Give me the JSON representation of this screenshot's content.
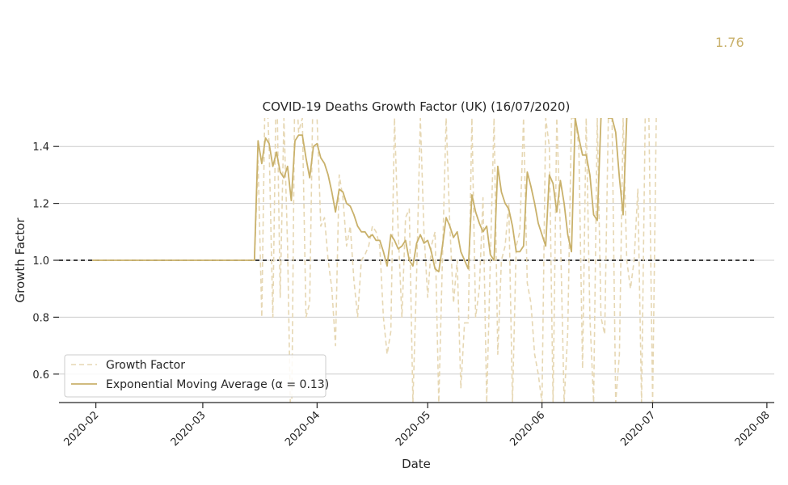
{
  "annotation": "1.76",
  "chart_data": {
    "type": "line",
    "title": "COVID-19 Deaths Growth Factor (UK) (16/07/2020)",
    "xlabel": "Date",
    "ylabel": "Growth Factor",
    "xlim": [
      "2020-01-22",
      "2020-08-03"
    ],
    "ylim": [
      0.5,
      1.5
    ],
    "x_ticks": [
      "2020-02",
      "2020-03",
      "2020-04",
      "2020-05",
      "2020-06",
      "2020-07",
      "2020-08"
    ],
    "y_ticks": [
      0.6,
      0.8,
      1.0,
      1.2,
      1.4
    ],
    "grid": "horizontal",
    "legend_position": "lower-left",
    "colors": {
      "series": "#c9b16b",
      "raw": "#e6d7b3",
      "reference": "#000000",
      "grid": "#cccccc"
    },
    "reference_line": {
      "y": 1.0,
      "x": [
        "2020-01-22",
        "2020-07-29"
      ],
      "style": "dashed"
    },
    "series": [
      {
        "name": "Growth Factor",
        "style": "dashed",
        "points": [
          [
            "2020-01-31",
            1.0
          ],
          [
            "2020-02-15",
            1.0
          ],
          [
            "2020-03-01",
            1.0
          ],
          [
            "2020-03-15",
            1.0
          ],
          [
            "2020-03-16",
            1.35
          ],
          [
            "2020-03-17",
            0.8
          ],
          [
            "2020-03-18",
            1.7
          ],
          [
            "2020-03-19",
            1.4
          ],
          [
            "2020-03-20",
            0.8
          ],
          [
            "2020-03-21",
            1.7
          ],
          [
            "2020-03-22",
            0.87
          ],
          [
            "2020-03-23",
            1.5
          ],
          [
            "2020-03-24",
            1.05
          ],
          [
            "2020-03-25",
            0.3
          ],
          [
            "2020-03-26",
            1.7
          ],
          [
            "2020-03-27",
            1.45
          ],
          [
            "2020-03-28",
            1.5
          ],
          [
            "2020-03-29",
            0.8
          ],
          [
            "2020-03-30",
            0.85
          ],
          [
            "2020-03-31",
            1.7
          ],
          [
            "2020-04-01",
            1.5
          ],
          [
            "2020-04-02",
            1.12
          ],
          [
            "2020-04-03",
            1.15
          ],
          [
            "2020-04-04",
            1.0
          ],
          [
            "2020-04-05",
            0.9
          ],
          [
            "2020-04-06",
            0.7
          ],
          [
            "2020-04-07",
            1.3
          ],
          [
            "2020-04-08",
            1.22
          ],
          [
            "2020-04-09",
            1.05
          ],
          [
            "2020-04-10",
            1.12
          ],
          [
            "2020-04-11",
            0.93
          ],
          [
            "2020-04-12",
            0.8
          ],
          [
            "2020-04-13",
            1.0
          ],
          [
            "2020-04-14",
            1.02
          ],
          [
            "2020-04-15",
            1.05
          ],
          [
            "2020-04-16",
            1.12
          ],
          [
            "2020-04-17",
            1.1
          ],
          [
            "2020-04-18",
            1.05
          ],
          [
            "2020-04-19",
            0.8
          ],
          [
            "2020-04-20",
            0.67
          ],
          [
            "2020-04-21",
            0.75
          ],
          [
            "2020-04-22",
            1.5
          ],
          [
            "2020-04-23",
            1.1
          ],
          [
            "2020-04-24",
            0.8
          ],
          [
            "2020-04-25",
            1.15
          ],
          [
            "2020-04-26",
            1.18
          ],
          [
            "2020-04-27",
            0.5
          ],
          [
            "2020-04-28",
            0.95
          ],
          [
            "2020-04-29",
            1.5
          ],
          [
            "2020-04-30",
            1.1
          ],
          [
            "2020-05-01",
            0.87
          ],
          [
            "2020-05-02",
            1.05
          ],
          [
            "2020-05-03",
            1.1
          ],
          [
            "2020-05-04",
            0.5
          ],
          [
            "2020-05-05",
            1.0
          ],
          [
            "2020-05-06",
            1.5
          ],
          [
            "2020-05-07",
            1.12
          ],
          [
            "2020-05-08",
            0.85
          ],
          [
            "2020-05-09",
            1.0
          ],
          [
            "2020-05-10",
            0.55
          ],
          [
            "2020-05-11",
            0.78
          ],
          [
            "2020-05-12",
            0.78
          ],
          [
            "2020-05-13",
            1.5
          ],
          [
            "2020-05-14",
            0.8
          ],
          [
            "2020-05-15",
            0.9
          ],
          [
            "2020-05-16",
            1.22
          ],
          [
            "2020-05-17",
            0.5
          ],
          [
            "2020-05-18",
            1.0
          ],
          [
            "2020-05-19",
            1.5
          ],
          [
            "2020-05-20",
            0.67
          ],
          [
            "2020-05-21",
            1.0
          ],
          [
            "2020-05-22",
            1.05
          ],
          [
            "2020-05-23",
            1.2
          ],
          [
            "2020-05-24",
            0.5
          ],
          [
            "2020-05-25",
            1.05
          ],
          [
            "2020-05-26",
            1.1
          ],
          [
            "2020-05-27",
            1.5
          ],
          [
            "2020-05-28",
            0.92
          ],
          [
            "2020-05-29",
            0.85
          ],
          [
            "2020-05-30",
            0.67
          ],
          [
            "2020-05-31",
            0.6
          ],
          [
            "2020-06-01",
            0.5
          ],
          [
            "2020-06-02",
            1.5
          ],
          [
            "2020-06-03",
            1.4
          ],
          [
            "2020-06-04",
            0.5
          ],
          [
            "2020-06-05",
            1.5
          ],
          [
            "2020-06-06",
            1.1
          ],
          [
            "2020-06-07",
            0.5
          ],
          [
            "2020-06-08",
            0.75
          ],
          [
            "2020-06-09",
            1.5
          ],
          [
            "2020-06-10",
            1.5
          ],
          [
            "2020-06-11",
            1.4
          ],
          [
            "2020-06-12",
            0.62
          ],
          [
            "2020-06-13",
            1.5
          ],
          [
            "2020-06-14",
            0.8
          ],
          [
            "2020-06-15",
            0.5
          ],
          [
            "2020-06-16",
            1.5
          ],
          [
            "2020-06-17",
            0.8
          ],
          [
            "2020-06-18",
            0.74
          ],
          [
            "2020-06-19",
            1.5
          ],
          [
            "2020-06-20",
            1.5
          ],
          [
            "2020-06-21",
            0.5
          ],
          [
            "2020-06-22",
            0.67
          ],
          [
            "2020-06-23",
            1.5
          ],
          [
            "2020-06-24",
            1.0
          ],
          [
            "2020-06-25",
            0.9
          ],
          [
            "2020-06-26",
            1.0
          ],
          [
            "2020-06-27",
            1.25
          ],
          [
            "2020-06-28",
            0.5
          ],
          [
            "2020-06-29",
            1.5
          ],
          [
            "2020-06-30",
            1.5
          ],
          [
            "2020-07-01",
            0.5
          ],
          [
            "2020-07-02",
            1.5
          ]
        ]
      },
      {
        "name": "Exponential Moving Average (α = 0.13)",
        "style": "solid",
        "points": [
          [
            "2020-01-31",
            1.0
          ],
          [
            "2020-02-15",
            1.0
          ],
          [
            "2020-03-01",
            1.0
          ],
          [
            "2020-03-15",
            1.0
          ],
          [
            "2020-03-16",
            1.42
          ],
          [
            "2020-03-17",
            1.34
          ],
          [
            "2020-03-18",
            1.43
          ],
          [
            "2020-03-19",
            1.41
          ],
          [
            "2020-03-20",
            1.33
          ],
          [
            "2020-03-21",
            1.38
          ],
          [
            "2020-03-22",
            1.31
          ],
          [
            "2020-03-23",
            1.29
          ],
          [
            "2020-03-24",
            1.33
          ],
          [
            "2020-03-25",
            1.21
          ],
          [
            "2020-03-26",
            1.42
          ],
          [
            "2020-03-27",
            1.44
          ],
          [
            "2020-03-28",
            1.44
          ],
          [
            "2020-03-29",
            1.36
          ],
          [
            "2020-03-30",
            1.29
          ],
          [
            "2020-03-31",
            1.4
          ],
          [
            "2020-04-01",
            1.41
          ],
          [
            "2020-04-02",
            1.36
          ],
          [
            "2020-04-03",
            1.34
          ],
          [
            "2020-04-04",
            1.3
          ],
          [
            "2020-04-05",
            1.24
          ],
          [
            "2020-04-06",
            1.17
          ],
          [
            "2020-04-07",
            1.25
          ],
          [
            "2020-04-08",
            1.24
          ],
          [
            "2020-04-09",
            1.2
          ],
          [
            "2020-04-10",
            1.19
          ],
          [
            "2020-04-11",
            1.16
          ],
          [
            "2020-04-12",
            1.12
          ],
          [
            "2020-04-13",
            1.1
          ],
          [
            "2020-04-14",
            1.1
          ],
          [
            "2020-04-15",
            1.08
          ],
          [
            "2020-04-16",
            1.09
          ],
          [
            "2020-04-17",
            1.07
          ],
          [
            "2020-04-18",
            1.07
          ],
          [
            "2020-04-19",
            1.03
          ],
          [
            "2020-04-20",
            0.98
          ],
          [
            "2020-04-21",
            1.09
          ],
          [
            "2020-04-22",
            1.07
          ],
          [
            "2020-04-23",
            1.04
          ],
          [
            "2020-04-24",
            1.05
          ],
          [
            "2020-04-25",
            1.07
          ],
          [
            "2020-04-26",
            1.0
          ],
          [
            "2020-04-27",
            0.98
          ],
          [
            "2020-04-28",
            1.06
          ],
          [
            "2020-04-29",
            1.09
          ],
          [
            "2020-04-30",
            1.06
          ],
          [
            "2020-05-01",
            1.07
          ],
          [
            "2020-05-02",
            1.03
          ],
          [
            "2020-05-03",
            0.97
          ],
          [
            "2020-05-04",
            0.96
          ],
          [
            "2020-05-05",
            1.05
          ],
          [
            "2020-05-06",
            1.15
          ],
          [
            "2020-05-07",
            1.12
          ],
          [
            "2020-05-08",
            1.08
          ],
          [
            "2020-05-09",
            1.1
          ],
          [
            "2020-05-10",
            1.03
          ],
          [
            "2020-05-11",
            1.0
          ],
          [
            "2020-05-12",
            0.97
          ],
          [
            "2020-05-13",
            1.23
          ],
          [
            "2020-05-14",
            1.17
          ],
          [
            "2020-05-15",
            1.13
          ],
          [
            "2020-05-16",
            1.1
          ],
          [
            "2020-05-17",
            1.12
          ],
          [
            "2020-05-18",
            1.02
          ],
          [
            "2020-05-19",
            1.0
          ],
          [
            "2020-05-20",
            1.33
          ],
          [
            "2020-05-21",
            1.24
          ],
          [
            "2020-05-22",
            1.2
          ],
          [
            "2020-05-23",
            1.18
          ],
          [
            "2020-05-24",
            1.12
          ],
          [
            "2020-05-25",
            1.03
          ],
          [
            "2020-05-26",
            1.03
          ],
          [
            "2020-05-27",
            1.05
          ],
          [
            "2020-05-28",
            1.31
          ],
          [
            "2020-05-29",
            1.26
          ],
          [
            "2020-05-30",
            1.2
          ],
          [
            "2020-05-31",
            1.13
          ],
          [
            "2020-06-01",
            1.09
          ],
          [
            "2020-06-02",
            1.05
          ],
          [
            "2020-06-03",
            1.3
          ],
          [
            "2020-06-04",
            1.27
          ],
          [
            "2020-06-05",
            1.17
          ],
          [
            "2020-06-06",
            1.28
          ],
          [
            "2020-06-07",
            1.2
          ],
          [
            "2020-06-08",
            1.09
          ],
          [
            "2020-06-09",
            1.03
          ],
          [
            "2020-06-10",
            1.5
          ],
          [
            "2020-06-11",
            1.43
          ],
          [
            "2020-06-12",
            1.37
          ],
          [
            "2020-06-13",
            1.37
          ],
          [
            "2020-06-14",
            1.3
          ],
          [
            "2020-06-15",
            1.16
          ],
          [
            "2020-06-16",
            1.14
          ],
          [
            "2020-06-17",
            1.5
          ],
          [
            "2020-06-18",
            1.6
          ],
          [
            "2020-06-19",
            1.5
          ],
          [
            "2020-06-20",
            1.5
          ],
          [
            "2020-06-21",
            1.45
          ],
          [
            "2020-06-22",
            1.29
          ],
          [
            "2020-06-23",
            1.16
          ],
          [
            "2020-06-24",
            1.5
          ]
        ]
      }
    ]
  }
}
